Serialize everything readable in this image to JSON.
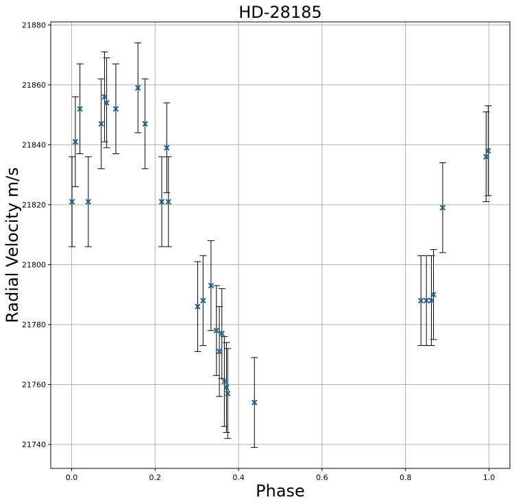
{
  "chart_data": {
    "type": "scatter",
    "title": "HD-28185",
    "xlabel": "Phase",
    "ylabel": "Radial Velocity m/s",
    "xlim": [
      -0.05,
      1.05
    ],
    "ylim": [
      21732,
      21881
    ],
    "xticks": [
      0.0,
      0.2,
      0.4,
      0.6,
      0.8,
      1.0
    ],
    "xtick_labels": [
      "0.0",
      "0.2",
      "0.4",
      "0.6",
      "0.8",
      "1.0"
    ],
    "yticks": [
      21740,
      21760,
      21780,
      21800,
      21820,
      21840,
      21860,
      21880
    ],
    "ytick_labels": [
      "21740",
      "21760",
      "21780",
      "21800",
      "21820",
      "21840",
      "21860",
      "21880"
    ],
    "grid": true,
    "marker": "x",
    "marker_color": "#1f5f8b",
    "errorbar_color": "#000000",
    "points": [
      {
        "x": 0.001,
        "y": 21821,
        "err": 15
      },
      {
        "x": 0.009,
        "y": 21841,
        "err": 15
      },
      {
        "x": 0.02,
        "y": 21852,
        "err": 15
      },
      {
        "x": 0.04,
        "y": 21821,
        "err": 15
      },
      {
        "x": 0.071,
        "y": 21847,
        "err": 15
      },
      {
        "x": 0.079,
        "y": 21856,
        "err": 15
      },
      {
        "x": 0.084,
        "y": 21854,
        "err": 15
      },
      {
        "x": 0.106,
        "y": 21852,
        "err": 15
      },
      {
        "x": 0.159,
        "y": 21859,
        "err": 15
      },
      {
        "x": 0.176,
        "y": 21847,
        "err": 15
      },
      {
        "x": 0.216,
        "y": 21821,
        "err": 15
      },
      {
        "x": 0.228,
        "y": 21839,
        "err": 15
      },
      {
        "x": 0.232,
        "y": 21821,
        "err": 15
      },
      {
        "x": 0.302,
        "y": 21786,
        "err": 15
      },
      {
        "x": 0.315,
        "y": 21788,
        "err": 15
      },
      {
        "x": 0.334,
        "y": 21793,
        "err": 15
      },
      {
        "x": 0.347,
        "y": 21778,
        "err": 15
      },
      {
        "x": 0.354,
        "y": 21771,
        "err": 15
      },
      {
        "x": 0.36,
        "y": 21777,
        "err": 15
      },
      {
        "x": 0.366,
        "y": 21761,
        "err": 15
      },
      {
        "x": 0.371,
        "y": 21759,
        "err": 15
      },
      {
        "x": 0.374,
        "y": 21757,
        "err": 15
      },
      {
        "x": 0.438,
        "y": 21754,
        "err": 15
      },
      {
        "x": 0.837,
        "y": 21788,
        "err": 15
      },
      {
        "x": 0.85,
        "y": 21788,
        "err": 15
      },
      {
        "x": 0.862,
        "y": 21788,
        "err": 15
      },
      {
        "x": 0.867,
        "y": 21790,
        "err": 15
      },
      {
        "x": 0.889,
        "y": 21819,
        "err": 15
      },
      {
        "x": 0.993,
        "y": 21836,
        "err": 15
      },
      {
        "x": 0.998,
        "y": 21838,
        "err": 15
      }
    ]
  }
}
